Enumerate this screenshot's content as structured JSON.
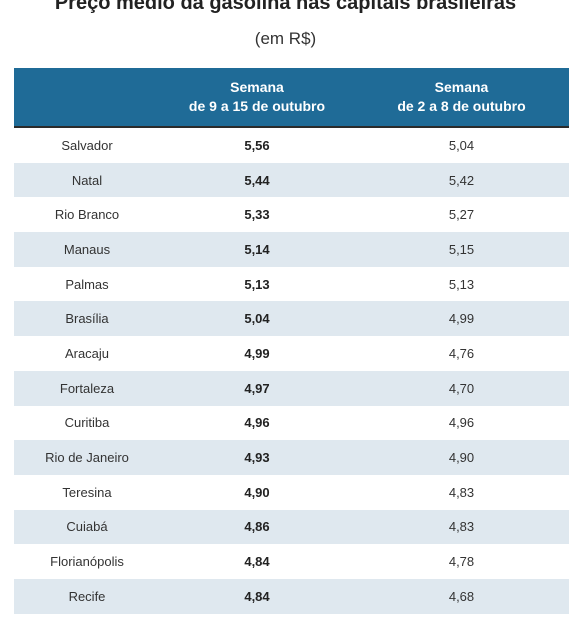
{
  "chart_data": {
    "type": "table",
    "title": "Preço médio da gasolina nas capitais brasileiras",
    "subtitle": "(em R$)",
    "columns": [
      {
        "line1": "",
        "line2": ""
      },
      {
        "line1": "Semana",
        "line2": "de 9 a 15 de outubro"
      },
      {
        "line1": "Semana",
        "line2": "de 2 a 8 de outubro"
      }
    ],
    "rows": [
      {
        "city": "Salvador",
        "week_9_15": "5,56",
        "week_2_8": "5,04"
      },
      {
        "city": "Natal",
        "week_9_15": "5,44",
        "week_2_8": "5,42"
      },
      {
        "city": "Rio Branco",
        "week_9_15": "5,33",
        "week_2_8": "5,27"
      },
      {
        "city": "Manaus",
        "week_9_15": "5,14",
        "week_2_8": "5,15"
      },
      {
        "city": "Palmas",
        "week_9_15": "5,13",
        "week_2_8": "5,13"
      },
      {
        "city": "Brasília",
        "week_9_15": "5,04",
        "week_2_8": "4,99"
      },
      {
        "city": "Aracaju",
        "week_9_15": "4,99",
        "week_2_8": "4,76"
      },
      {
        "city": "Fortaleza",
        "week_9_15": "4,97",
        "week_2_8": "4,70"
      },
      {
        "city": "Curitiba",
        "week_9_15": "4,96",
        "week_2_8": "4,96"
      },
      {
        "city": "Rio de Janeiro",
        "week_9_15": "4,93",
        "week_2_8": "4,90"
      },
      {
        "city": "Teresina",
        "week_9_15": "4,90",
        "week_2_8": "4,83"
      },
      {
        "city": "Cuiabá",
        "week_9_15": "4,86",
        "week_2_8": "4,83"
      },
      {
        "city": "Florianópolis",
        "week_9_15": "4,84",
        "week_2_8": "4,78"
      },
      {
        "city": "Recife",
        "week_9_15": "4,84",
        "week_2_8": "4,68"
      }
    ],
    "colors": {
      "header_bg": "#1f6b97",
      "header_text": "#ffffff",
      "stripe": "#dfe8ef"
    }
  }
}
